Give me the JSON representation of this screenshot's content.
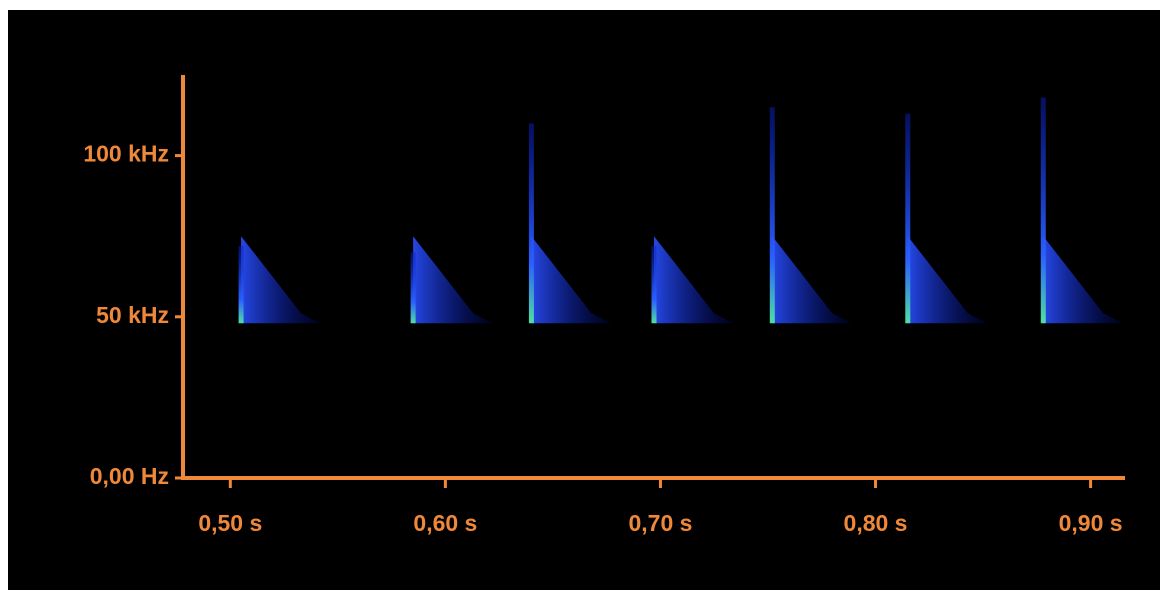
{
  "chart_data": {
    "type": "spectrogram",
    "x": [
      0.505,
      0.585,
      0.64,
      0.697,
      0.752,
      0.815,
      0.878
    ],
    "values": [
      72,
      70,
      110,
      72,
      115,
      113,
      118
    ],
    "lows": [
      48,
      48,
      48,
      48,
      48,
      48,
      48
    ],
    "color": "#1030ff",
    "axis_color": "#f0883a",
    "xlim": [
      0.478,
      0.916
    ],
    "ylim": [
      0,
      125
    ],
    "xticks": [
      {
        "value": 0.5,
        "label": "0,50 s"
      },
      {
        "value": 0.6,
        "label": "0,60 s"
      },
      {
        "value": 0.7,
        "label": "0,70 s"
      },
      {
        "value": 0.8,
        "label": "0,80 s"
      },
      {
        "value": 0.9,
        "label": "0,90 s"
      }
    ],
    "yticks": [
      {
        "value": 0,
        "label": "0,00 Hz"
      },
      {
        "value": 50,
        "label": "50 kHz"
      },
      {
        "value": 100,
        "label": "100 kHz"
      }
    ]
  }
}
